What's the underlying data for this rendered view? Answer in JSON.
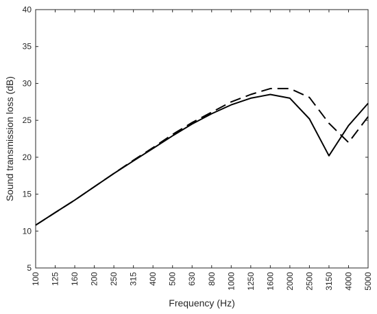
{
  "chart_data": {
    "type": "line",
    "xlabel": "Frequency (Hz)",
    "ylabel": "Sound transmission loss (dB)",
    "categories": [
      "100",
      "125",
      "160",
      "200",
      "250",
      "315",
      "400",
      "500",
      "630",
      "800",
      "1000",
      "1250",
      "1600",
      "2000",
      "2500",
      "3150",
      "4000",
      "5000"
    ],
    "ylim": [
      5,
      40
    ],
    "yticks": [
      5,
      10,
      15,
      20,
      25,
      30,
      35,
      40
    ],
    "grid": false,
    "series": [
      {
        "line_style": "solid",
        "color": "#000000",
        "values": [
          10.8,
          12.5,
          14.2,
          16.0,
          17.8,
          19.5,
          21.2,
          22.9,
          24.5,
          25.9,
          27.1,
          28.0,
          28.5,
          28.0,
          25.2,
          20.2,
          24.3,
          27.3
        ]
      },
      {
        "line_style": "dashed",
        "color": "#000000",
        "values": [
          10.8,
          12.5,
          14.2,
          16.0,
          17.8,
          19.6,
          21.3,
          23.1,
          24.7,
          26.1,
          27.5,
          28.5,
          29.3,
          29.3,
          28.1,
          24.6,
          22.0,
          25.5
        ]
      }
    ]
  }
}
